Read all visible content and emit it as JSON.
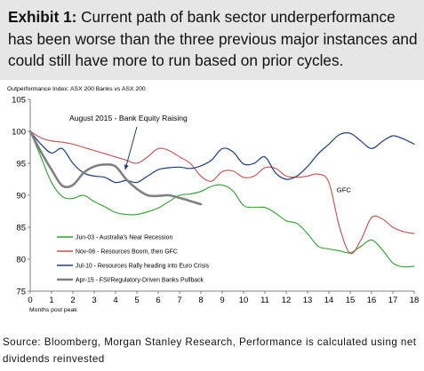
{
  "header": {
    "exhibit_label": "Exhibit 1:",
    "title": "Current path of bank sector underperformance has been worse than the three previous major instances and could still have more to run based on prior cycles."
  },
  "source_text": "Source: Bloomberg, Morgan Stanley Research, Performance is calculated using net dividends reinvested",
  "chart_data": {
    "type": "line",
    "title": "",
    "ylabel": "Outperformance Index: ASX 200 Banks vs ASX 200",
    "xlabel": "Months post peak",
    "xlim": [
      0,
      18
    ],
    "ylim": [
      75,
      105
    ],
    "x_ticks": [
      0,
      1,
      2,
      3,
      4,
      5,
      6,
      7,
      8,
      9,
      10,
      11,
      12,
      13,
      14,
      15,
      16,
      17,
      18
    ],
    "y_ticks": [
      75,
      80,
      85,
      90,
      95,
      100,
      105
    ],
    "grid": false,
    "legend_position": "bottom-left",
    "annotations": [
      {
        "text": "August 2015 - Bank Equity Raising",
        "x": 4.6,
        "y": 101.7
      },
      {
        "text": "GFC",
        "x": 14.7,
        "y": 90.5
      }
    ],
    "series": [
      {
        "name": "Jun-03 - Australia's Near Recession",
        "color": "#2ca02c",
        "points": [
          [
            0,
            100
          ],
          [
            0.5,
            96
          ],
          [
            1,
            92
          ],
          [
            1.5,
            89.8
          ],
          [
            2,
            89.5
          ],
          [
            2.5,
            90
          ],
          [
            3,
            89
          ],
          [
            3.5,
            88.2
          ],
          [
            4,
            87.3
          ],
          [
            4.5,
            87
          ],
          [
            5,
            87
          ],
          [
            5.5,
            87.4
          ],
          [
            6,
            88
          ],
          [
            6.5,
            89
          ],
          [
            7,
            90
          ],
          [
            7.5,
            90.2
          ],
          [
            8,
            90.6
          ],
          [
            8.5,
            91.4
          ],
          [
            9,
            91.6
          ],
          [
            9.5,
            90.7
          ],
          [
            10,
            88.4
          ],
          [
            10.5,
            88.1
          ],
          [
            11,
            88.1
          ],
          [
            11.5,
            87.2
          ],
          [
            12,
            86
          ],
          [
            12.5,
            85.6
          ],
          [
            13,
            84
          ],
          [
            13.5,
            82
          ],
          [
            14,
            81.6
          ],
          [
            14.5,
            81.3
          ],
          [
            15,
            81
          ],
          [
            15.5,
            82
          ],
          [
            16,
            83
          ],
          [
            16.5,
            81.5
          ],
          [
            17,
            79.4
          ],
          [
            17.5,
            78.8
          ],
          [
            18,
            78.9
          ]
        ]
      },
      {
        "name": "Nov-06 - Resources Boom, then GFC",
        "color": "#c0504d",
        "points": [
          [
            0,
            100
          ],
          [
            0.5,
            99
          ],
          [
            1,
            98.5
          ],
          [
            1.5,
            98.3
          ],
          [
            2,
            98
          ],
          [
            2.5,
            97.5
          ],
          [
            3,
            97
          ],
          [
            3.5,
            96.5
          ],
          [
            4,
            96
          ],
          [
            4.5,
            95.5
          ],
          [
            5,
            95
          ],
          [
            5.5,
            96
          ],
          [
            6,
            97.3
          ],
          [
            6.5,
            97
          ],
          [
            7,
            96
          ],
          [
            7.5,
            95
          ],
          [
            8,
            93
          ],
          [
            8.5,
            92.2
          ],
          [
            9,
            93.7
          ],
          [
            9.5,
            93.8
          ],
          [
            10,
            92.8
          ],
          [
            10.5,
            93
          ],
          [
            11,
            94.3
          ],
          [
            11.5,
            94.2
          ],
          [
            12,
            93
          ],
          [
            12.5,
            92.8
          ],
          [
            13,
            93
          ],
          [
            13.5,
            93.3
          ],
          [
            14,
            92
          ],
          [
            14.5,
            85
          ],
          [
            15,
            80.9
          ],
          [
            15.5,
            83
          ],
          [
            16,
            86.5
          ],
          [
            16.5,
            86.3
          ],
          [
            17,
            85
          ],
          [
            17.5,
            84.3
          ],
          [
            18,
            84
          ]
        ]
      },
      {
        "name": "Jul-10 - Resources Rally heading into Euro Crisis",
        "color": "#1f3f7a",
        "points": [
          [
            0,
            100
          ],
          [
            0.5,
            98
          ],
          [
            1,
            96.6
          ],
          [
            1.5,
            97.3
          ],
          [
            2,
            95
          ],
          [
            2.5,
            93.5
          ],
          [
            3,
            93
          ],
          [
            3.5,
            92.8
          ],
          [
            4,
            92
          ],
          [
            4.5,
            92.3
          ],
          [
            5,
            92
          ],
          [
            5.5,
            93
          ],
          [
            6,
            94
          ],
          [
            6.5,
            94.3
          ],
          [
            7,
            94.4
          ],
          [
            7.5,
            94.2
          ],
          [
            8,
            94.6
          ],
          [
            8.5,
            95.5
          ],
          [
            9,
            97.3
          ],
          [
            9.5,
            96.8
          ],
          [
            10,
            94.9
          ],
          [
            10.5,
            95
          ],
          [
            11,
            96
          ],
          [
            11.5,
            93.5
          ],
          [
            12,
            92.5
          ],
          [
            12.5,
            93
          ],
          [
            13,
            94.5
          ],
          [
            13.5,
            96.5
          ],
          [
            14,
            98
          ],
          [
            14.5,
            99.5
          ],
          [
            15,
            99.7
          ],
          [
            15.5,
            98.5
          ],
          [
            16,
            97.3
          ],
          [
            16.5,
            98.4
          ],
          [
            17,
            99.3
          ],
          [
            17.5,
            98.8
          ],
          [
            18,
            98
          ]
        ]
      },
      {
        "name": "Apr-15 - FSI/Regulatory-Driven Banks Pullback",
        "color": "#808080",
        "points": [
          [
            0,
            100
          ],
          [
            0.5,
            96.8
          ],
          [
            1,
            94
          ],
          [
            1.5,
            91.5
          ],
          [
            2,
            91.6
          ],
          [
            2.5,
            93.5
          ],
          [
            3,
            94.5
          ],
          [
            3.5,
            94.8
          ],
          [
            4,
            94.5
          ],
          [
            4.5,
            92.5
          ],
          [
            5,
            91
          ],
          [
            5.5,
            90
          ],
          [
            6,
            89.9
          ],
          [
            6.5,
            90
          ],
          [
            7,
            89.6
          ],
          [
            7.5,
            89.1
          ],
          [
            8,
            88.6
          ]
        ]
      }
    ]
  }
}
